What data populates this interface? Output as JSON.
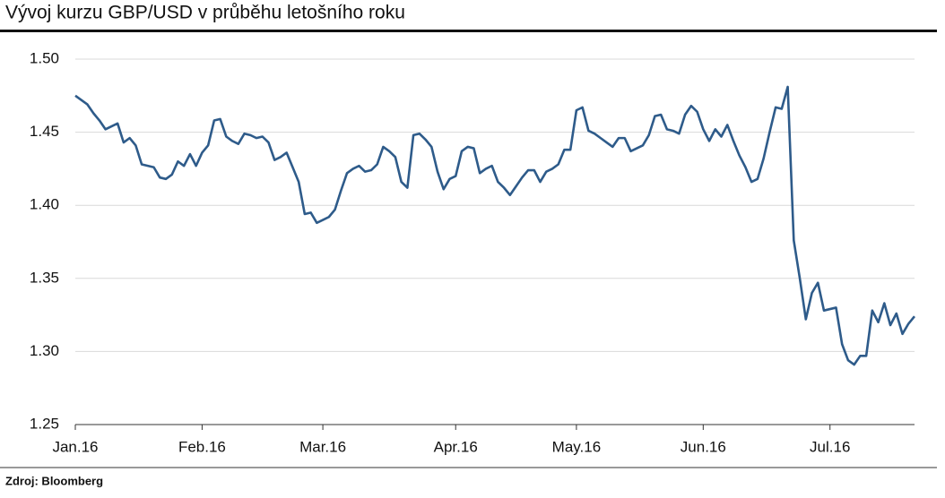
{
  "chart_data": {
    "type": "line",
    "title": "Vývoj kurzu GBP/USD v průběhu letošního roku",
    "source": "Zdroj: Bloomberg",
    "categories": [
      "Jan.16",
      null,
      null,
      null,
      null,
      null,
      null,
      null,
      null,
      null,
      null,
      null,
      null,
      null,
      null,
      null,
      null,
      null,
      null,
      null,
      null,
      "Feb.16",
      null,
      null,
      null,
      null,
      null,
      null,
      null,
      null,
      null,
      null,
      null,
      null,
      null,
      null,
      null,
      null,
      null,
      null,
      null,
      "Mar.16",
      null,
      null,
      null,
      null,
      null,
      null,
      null,
      null,
      null,
      null,
      null,
      null,
      null,
      null,
      null,
      null,
      null,
      null,
      null,
      null,
      null,
      "Apr.16",
      null,
      null,
      null,
      null,
      null,
      null,
      null,
      null,
      null,
      null,
      null,
      null,
      null,
      null,
      null,
      null,
      null,
      null,
      null,
      "May.16",
      null,
      null,
      null,
      null,
      null,
      null,
      null,
      null,
      null,
      null,
      null,
      null,
      null,
      null,
      null,
      null,
      null,
      null,
      null,
      null,
      "Jun.16",
      null,
      null,
      null,
      null,
      null,
      null,
      null,
      null,
      null,
      null,
      null,
      null,
      null,
      null,
      null,
      null,
      null,
      null,
      null,
      null,
      "Jul.16",
      null,
      null,
      null,
      null,
      null,
      null,
      null,
      null,
      null,
      null,
      null,
      null,
      null,
      null
    ],
    "values": [
      1.475,
      1.472,
      1.469,
      1.463,
      1.458,
      1.452,
      1.454,
      1.456,
      1.443,
      1.446,
      1.441,
      1.428,
      1.427,
      1.426,
      1.419,
      1.418,
      1.421,
      1.43,
      1.427,
      1.435,
      1.427,
      1.436,
      1.441,
      1.458,
      1.459,
      1.447,
      1.444,
      1.442,
      1.449,
      1.448,
      1.446,
      1.447,
      1.443,
      1.431,
      1.433,
      1.436,
      1.426,
      1.416,
      1.394,
      1.395,
      1.388,
      1.39,
      1.392,
      1.397,
      1.41,
      1.422,
      1.425,
      1.427,
      1.423,
      1.424,
      1.428,
      1.44,
      1.437,
      1.433,
      1.416,
      1.412,
      1.448,
      1.449,
      1.445,
      1.44,
      1.423,
      1.411,
      1.418,
      1.42,
      1.437,
      1.44,
      1.439,
      1.422,
      1.425,
      1.427,
      1.416,
      1.412,
      1.407,
      1.413,
      1.419,
      1.424,
      1.424,
      1.416,
      1.423,
      1.425,
      1.428,
      1.438,
      1.438,
      1.465,
      1.467,
      1.451,
      1.449,
      1.446,
      1.443,
      1.44,
      1.446,
      1.446,
      1.437,
      1.439,
      1.441,
      1.448,
      1.461,
      1.462,
      1.452,
      1.451,
      1.449,
      1.462,
      1.468,
      1.464,
      1.452,
      1.444,
      1.452,
      1.447,
      1.455,
      1.444,
      1.434,
      1.426,
      1.416,
      1.418,
      1.432,
      1.45,
      1.467,
      1.466,
      1.481,
      1.376,
      1.35,
      1.322,
      1.34,
      1.347,
      1.328,
      1.329,
      1.33,
      1.305,
      1.294,
      1.291,
      1.297,
      1.297,
      1.328,
      1.32,
      1.333,
      1.318,
      1.326,
      1.312,
      1.319,
      1.324
    ],
    "color": "#2e5b8a",
    "ylim": [
      1.25,
      1.5
    ],
    "yticks": [
      1.25,
      {
        "value": 1.3,
        "label": "1.30"
      },
      1.35,
      {
        "value": 1.4,
        "label": "1.40"
      },
      1.45,
      {
        "value": 1.5,
        "label": "1.50"
      }
    ],
    "grid": true
  }
}
